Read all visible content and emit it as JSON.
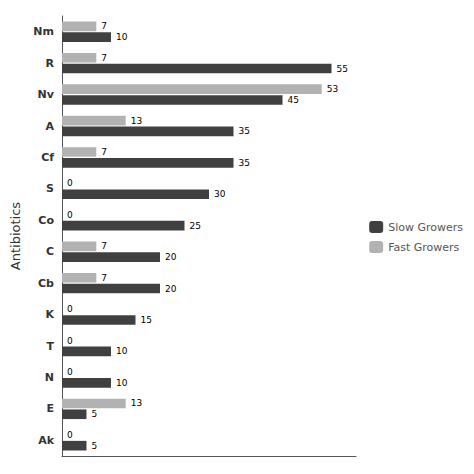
{
  "chart_data": {
    "type": "bar",
    "orientation": "horizontal",
    "ylabel": "Antibiotics",
    "categories": [
      "Ak",
      "E",
      "N",
      "T",
      "K",
      "Cb",
      "C",
      "Co",
      "S",
      "Cf",
      "A",
      "Nv",
      "R",
      "Nm"
    ],
    "series": [
      {
        "name": "Slow Growers",
        "color": "#404040",
        "values": [
          5,
          5,
          10,
          10,
          15,
          20,
          20,
          25,
          30,
          35,
          35,
          45,
          55,
          10
        ]
      },
      {
        "name": "Fast Growers",
        "color": "#b2b2b2",
        "values": [
          0,
          13,
          0,
          0,
          0,
          7,
          7,
          0,
          0,
          7,
          13,
          53,
          7,
          7
        ]
      }
    ],
    "xlim": [
      0,
      60
    ],
    "grid": false,
    "legend": "right",
    "data_labels": true,
    "tick_labels": "y"
  }
}
